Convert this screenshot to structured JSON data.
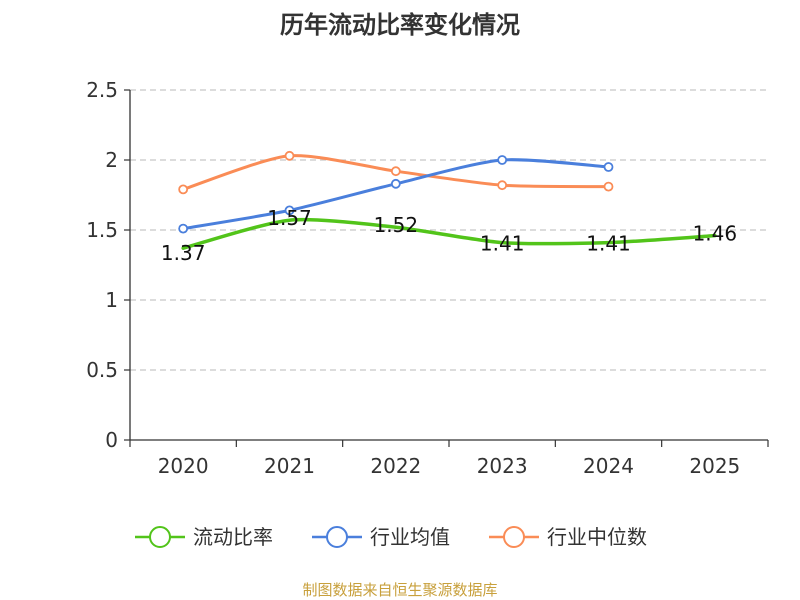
{
  "colors": {
    "series_main": "#52c41a",
    "series_avg": "#4a7fdc",
    "series_median": "#fa8c56",
    "source": "#c8a03c"
  },
  "chart_data": {
    "type": "line",
    "title": "历年流动比率变化情况",
    "categories": [
      "2020",
      "2021",
      "2022",
      "2023",
      "2024",
      "2025"
    ],
    "ylim": [
      0,
      2.5
    ],
    "yticks": [
      "0",
      "0.5",
      "1",
      "1.5",
      "2",
      "2.5"
    ],
    "ytick_values": [
      0,
      0.5,
      1,
      1.5,
      2,
      2.5
    ],
    "grid": true,
    "legend_position": "bottom",
    "series": [
      {
        "name": "流动比率",
        "values": [
          1.37,
          1.57,
          1.52,
          1.41,
          1.41,
          1.46
        ],
        "labels": [
          "1.37",
          "1.57",
          "1.52",
          "1.41",
          "1.41",
          "1.46"
        ]
      },
      {
        "name": "行业均值",
        "values": [
          1.51,
          1.64,
          1.83,
          2.0,
          1.95,
          null
        ]
      },
      {
        "name": "行业中位数",
        "values": [
          1.79,
          2.03,
          1.92,
          1.82,
          1.81,
          null
        ]
      }
    ],
    "source": "制图数据来自恒生聚源数据库"
  }
}
